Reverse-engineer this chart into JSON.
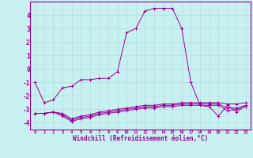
{
  "x": [
    0,
    1,
    2,
    3,
    4,
    5,
    6,
    7,
    8,
    9,
    10,
    11,
    12,
    13,
    14,
    15,
    16,
    17,
    18,
    19,
    20,
    21,
    22,
    23
  ],
  "line1": [
    -1.0,
    -2.5,
    -2.3,
    -1.4,
    -1.3,
    -0.8,
    -0.8,
    -0.7,
    -0.7,
    -0.2,
    2.7,
    3.0,
    4.3,
    4.5,
    4.5,
    4.5,
    3.0,
    -1.0,
    -2.7,
    -2.8,
    -3.5,
    -2.7,
    -3.2,
    -2.7
  ],
  "line2": [
    -3.3,
    -3.3,
    -3.2,
    -3.3,
    -3.7,
    -3.5,
    -3.4,
    -3.2,
    -3.1,
    -3.0,
    -2.9,
    -2.8,
    -2.7,
    -2.7,
    -2.6,
    -2.6,
    -2.5,
    -2.5,
    -2.5,
    -2.5,
    -2.5,
    -2.6,
    -2.6,
    -2.5
  ],
  "line3": [
    -3.3,
    -3.3,
    -3.2,
    -3.4,
    -3.8,
    -3.6,
    -3.5,
    -3.3,
    -3.2,
    -3.1,
    -3.0,
    -2.9,
    -2.8,
    -2.8,
    -2.7,
    -2.7,
    -2.6,
    -2.6,
    -2.6,
    -2.6,
    -2.6,
    -2.9,
    -2.9,
    -2.7
  ],
  "line4": [
    -3.3,
    -3.3,
    -3.2,
    -3.5,
    -3.9,
    -3.7,
    -3.6,
    -3.4,
    -3.3,
    -3.2,
    -3.1,
    -3.0,
    -2.9,
    -2.9,
    -2.8,
    -2.8,
    -2.7,
    -2.7,
    -2.7,
    -2.7,
    -2.7,
    -3.1,
    -3.0,
    -2.8
  ],
  "line_color": "#990099",
  "bg_color": "#c8f0f0",
  "grid_color": "#b0dede",
  "marker": "+",
  "marker_size": 3,
  "xlabel": "Windchill (Refroidissement éolien,°C)",
  "ylim": [
    -4.5,
    5.0
  ],
  "xlim": [
    -0.5,
    23.5
  ],
  "yticks": [
    -4,
    -3,
    -2,
    -1,
    0,
    1,
    2,
    3,
    4
  ],
  "xticks": [
    0,
    1,
    2,
    3,
    4,
    5,
    6,
    7,
    8,
    9,
    10,
    11,
    12,
    13,
    14,
    15,
    16,
    17,
    18,
    19,
    20,
    21,
    22,
    23
  ]
}
